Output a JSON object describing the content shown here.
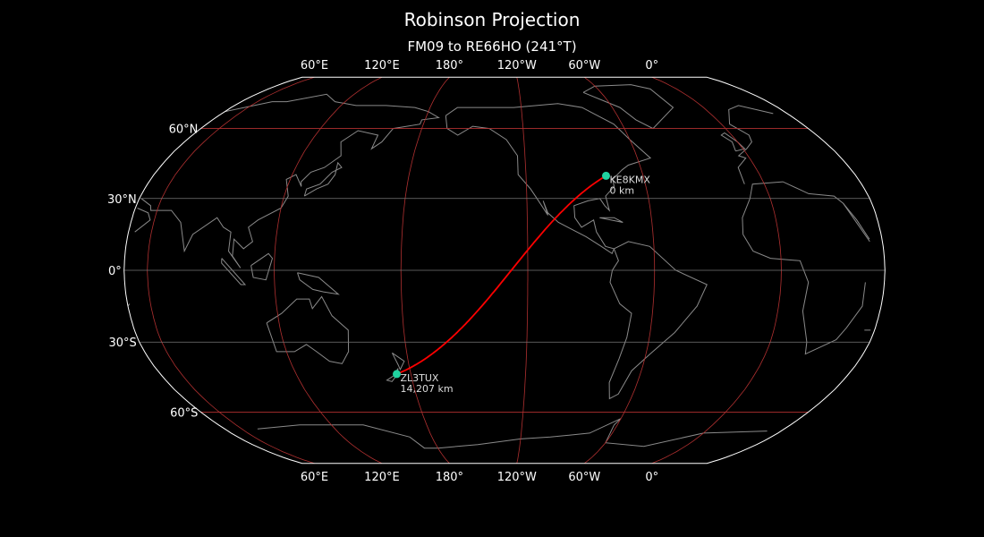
{
  "title": "Robinson Projection",
  "subtitle": "FM09 to RE66HO (241°T)",
  "map": {
    "projection": "Robinson",
    "central_longitude": -131,
    "meridians": [
      -180,
      -120,
      -60,
      0,
      60,
      120
    ],
    "parallels": [
      60,
      30,
      0,
      -30,
      -60
    ],
    "lon_labels": [
      {
        "lon": 60,
        "text": "60°E"
      },
      {
        "lon": 120,
        "text": "120°E"
      },
      {
        "lon": 180,
        "text": "180°"
      },
      {
        "lon": -120,
        "text": "120°W"
      },
      {
        "lon": -60,
        "text": "60°W"
      },
      {
        "lon": 0,
        "text": "0°"
      }
    ],
    "lat_labels": [
      {
        "lat": 60,
        "text": "60°N"
      },
      {
        "lat": 30,
        "text": "30°N"
      },
      {
        "lat": 0,
        "text": "0°"
      },
      {
        "lat": -30,
        "text": "30°S"
      },
      {
        "lat": -60,
        "text": "60°S"
      }
    ],
    "colors": {
      "background": "#000000",
      "outline": "#ffffff",
      "coastline": "#8a8a8a",
      "graticule": "#b03030",
      "path": "#ff0000",
      "station": "#20d2a0",
      "label": "#dddddd"
    }
  },
  "stations": [
    {
      "call": "KE8KMX",
      "distance": "0 km",
      "grid": "FM09",
      "lon": -79.0,
      "lat": 39.5
    },
    {
      "call": "ZL3TUX",
      "distance": "14,207 km",
      "grid": "RE66HO",
      "lon": 172.6,
      "lat": -43.4
    }
  ]
}
